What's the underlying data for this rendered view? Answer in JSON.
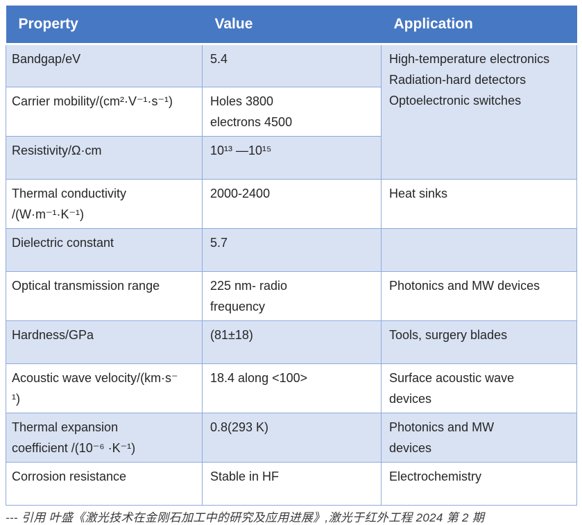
{
  "colors": {
    "header_bg": "#4778C3",
    "header_text": "#FFFFFF",
    "band_bg": "#D9E2F3",
    "border": "#8EAADB",
    "body_text": "#262626"
  },
  "table": {
    "headers": [
      "Property",
      "Value",
      "Application"
    ],
    "rows": [
      {
        "property": "Bandgap/eV",
        "value": "5.4",
        "application": "High-temperature electronics\nRadiation-hard detectors\nOptoelectronic switches"
      },
      {
        "property": "Carrier mobility/(cm²·V⁻¹·s⁻¹)",
        "value": "Holes 3800\nelectrons 4500"
      },
      {
        "property": "Resistivity/Ω·cm",
        "value": "10¹³ —10¹⁵"
      },
      {
        "property": "Thermal conductivity\n/(W·m⁻¹·K⁻¹)",
        "value": "2000-2400",
        "application": "Heat sinks"
      },
      {
        "property": "Dielectric constant",
        "value": "5.7",
        "application": ""
      },
      {
        "property": "Optical transmission range",
        "value": "225 nm- radio\nfrequency",
        "application": "Photonics and MW devices"
      },
      {
        "property": "Hardness/GPa",
        "value": "(81±18)",
        "application": "Tools, surgery blades"
      },
      {
        "property": "Acoustic wave velocity/(km·s⁻\n¹)",
        "value": "18.4 along <100>",
        "application": "Surface acoustic wave\ndevices"
      },
      {
        "property": "Thermal expansion\ncoefficient /(10⁻⁶ ·K⁻¹)",
        "value": "0.8(293 K)",
        "application": "Photonics and MW\ndevices"
      },
      {
        "property": "Corrosion resistance",
        "value": "Stable in HF",
        "application": "Electrochemistry"
      }
    ]
  },
  "footer": {
    "citation": "--- 引用 叶盛《激光技术在金刚石加工中的研究及应用进展》,激光于红外工程 2024 第 2 期"
  }
}
